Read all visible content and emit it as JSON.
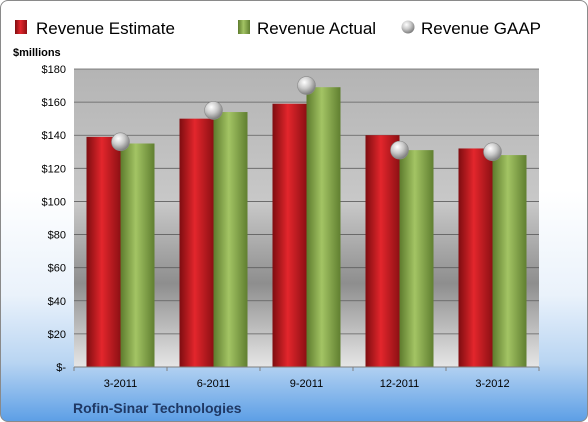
{
  "colors": {
    "estimate": "#c8161d",
    "actual": "#8cad50",
    "gaap": "#bfbfbf",
    "company": "#1f3864"
  },
  "unit_label": "$millions",
  "company_name": "Rofin-Sinar Technologies",
  "chart_data": {
    "type": "bar",
    "title": "",
    "xlabel": "",
    "ylabel": "$millions",
    "categories": [
      "3-2011",
      "6-2011",
      "9-2011",
      "12-2011",
      "3-2012"
    ],
    "series": [
      {
        "name": "Revenue Estimate",
        "style": "bar",
        "values": [
          139,
          150,
          159,
          140,
          132
        ]
      },
      {
        "name": "Revenue Actual",
        "style": "bar",
        "values": [
          135,
          154,
          169,
          131,
          128
        ]
      },
      {
        "name": "Revenue GAAP",
        "style": "marker",
        "values": [
          136,
          155,
          170,
          131,
          130
        ]
      }
    ],
    "ylim": [
      0,
      180
    ],
    "yticks": [
      0,
      20,
      40,
      60,
      80,
      100,
      120,
      140,
      160,
      180
    ],
    "ytick_labels": [
      "$-",
      "$20",
      "$40",
      "$60",
      "$80",
      "$100",
      "$120",
      "$140",
      "$160",
      "$180"
    ],
    "grid": true,
    "legend_position": "top"
  }
}
